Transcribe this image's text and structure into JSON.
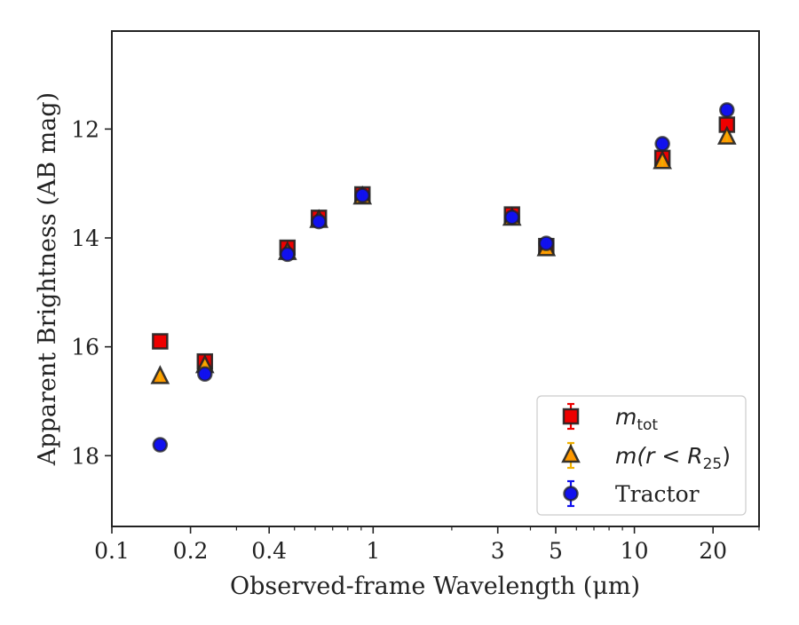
{
  "chart_data": {
    "type": "scatter",
    "title": "",
    "xlabel": "Observed-frame Wavelength (μm)",
    "ylabel": "Apparent Brightness (AB mag)",
    "xscale": "log",
    "xlim": [
      0.1,
      30
    ],
    "ylim": [
      19.3,
      10.2
    ],
    "y_inverted": true,
    "xticks": [
      {
        "value": 0.1,
        "label": "0.1"
      },
      {
        "value": 0.2,
        "label": "0.2"
      },
      {
        "value": 0.4,
        "label": "0.4"
      },
      {
        "value": 1,
        "label": "1"
      },
      {
        "value": 3,
        "label": "3"
      },
      {
        "value": 5,
        "label": "5"
      },
      {
        "value": 10,
        "label": "10"
      },
      {
        "value": 20,
        "label": "20"
      }
    ],
    "yticks": [
      {
        "value": 12,
        "label": "12"
      },
      {
        "value": 14,
        "label": "14"
      },
      {
        "value": 16,
        "label": "16"
      },
      {
        "value": 18,
        "label": "18"
      }
    ],
    "grid": false,
    "legend_position": "lower-right",
    "series": [
      {
        "name": "m_tot",
        "legend_main": "m",
        "legend_sub": "tot",
        "legend_rest": "",
        "marker": "square",
        "color": "#ee0000",
        "errcolor": "#ee0000",
        "points": [
          {
            "x": 0.153,
            "y": 15.9
          },
          {
            "x": 0.227,
            "y": 16.27
          },
          {
            "x": 0.47,
            "y": 14.18
          },
          {
            "x": 0.62,
            "y": 13.63
          },
          {
            "x": 0.91,
            "y": 13.2
          },
          {
            "x": 3.4,
            "y": 13.57
          },
          {
            "x": 4.6,
            "y": 14.15
          },
          {
            "x": 12.8,
            "y": 12.53
          },
          {
            "x": 22.6,
            "y": 11.92
          }
        ]
      },
      {
        "name": "m(r < R25)",
        "legend_main": "m(r < R",
        "legend_sub": "25",
        "legend_rest": ")",
        "marker": "triangle",
        "color": "#ff9900",
        "errcolor": "#f0b000",
        "points": [
          {
            "x": 0.153,
            "y": 16.55
          },
          {
            "x": 0.227,
            "y": 16.35
          },
          {
            "x": 0.47,
            "y": 14.27
          },
          {
            "x": 0.62,
            "y": 13.68
          },
          {
            "x": 0.91,
            "y": 13.25
          },
          {
            "x": 3.4,
            "y": 13.64
          },
          {
            "x": 4.6,
            "y": 14.2
          },
          {
            "x": 12.8,
            "y": 12.6
          },
          {
            "x": 22.6,
            "y": 12.15
          }
        ]
      },
      {
        "name": "Tractor",
        "legend_main": "Tractor",
        "legend_sub": "",
        "legend_rest": "",
        "marker": "circle",
        "color": "#1111ee",
        "errcolor": "#1111ee",
        "points": [
          {
            "x": 0.153,
            "y": 17.8
          },
          {
            "x": 0.227,
            "y": 16.5
          },
          {
            "x": 0.47,
            "y": 14.3
          },
          {
            "x": 0.62,
            "y": 13.7
          },
          {
            "x": 0.91,
            "y": 13.22
          },
          {
            "x": 3.4,
            "y": 13.62
          },
          {
            "x": 4.6,
            "y": 14.1
          },
          {
            "x": 12.8,
            "y": 12.27
          },
          {
            "x": 22.6,
            "y": 11.65
          }
        ]
      }
    ]
  }
}
